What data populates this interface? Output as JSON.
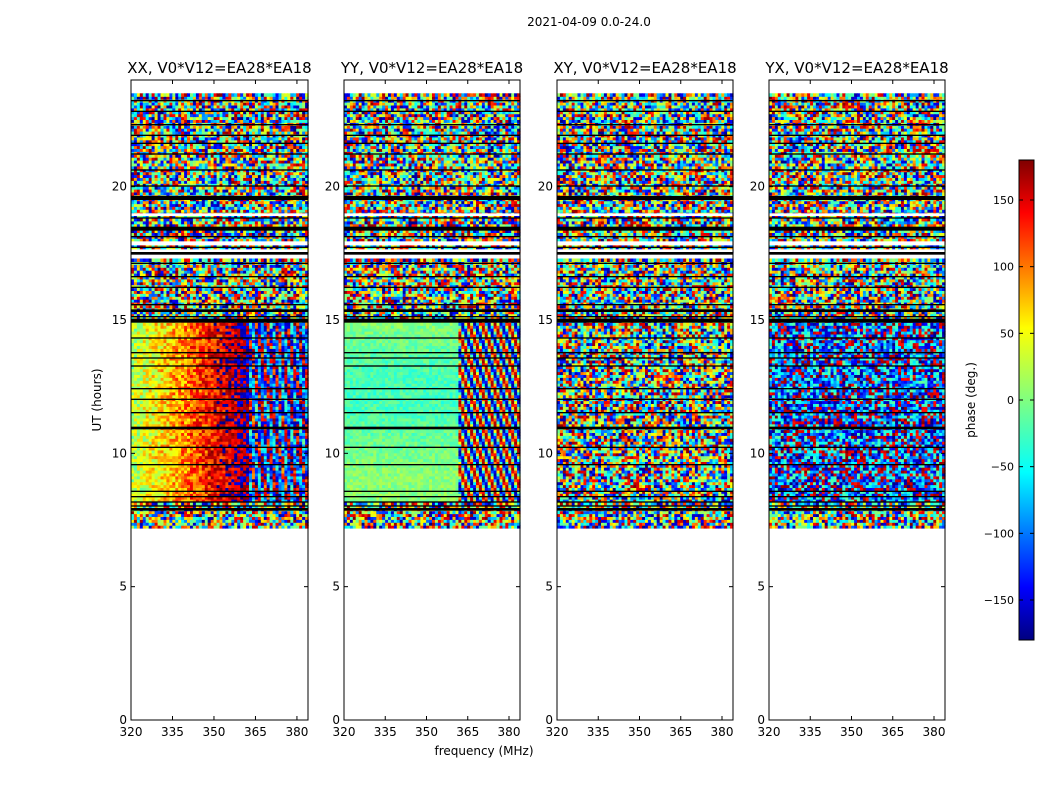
{
  "figure": {
    "suptitle": "2021-04-09 0.0-24.0"
  },
  "chart_data": [
    {
      "type": "heatmap",
      "title": "XX, V0*V12=EA28*EA18",
      "xlabel": "",
      "ylabel": "UT (hours)",
      "xlim": [
        320,
        384
      ],
      "ylim": [
        0,
        24
      ],
      "xticks": [
        320,
        335,
        350,
        365,
        380
      ],
      "yticks": [
        0,
        5,
        10,
        15,
        20
      ],
      "data_time_range": [
        7.2,
        23.5
      ],
      "pattern": "coherent phase gradient: about 0 to 150 deg near 320-335 MHz, ~170 deg near 350 MHz, wrapping to -150 deg around 362 MHz, 8-15 UT; noisy elsewhere"
    },
    {
      "type": "heatmap",
      "title": "YY, V0*V12=EA28*EA18",
      "xlabel": "frequency (MHz)",
      "ylabel": "",
      "xlim": [
        320,
        384
      ],
      "ylim": [
        0,
        24
      ],
      "xticks": [
        320,
        335,
        350,
        365,
        380
      ],
      "yticks": [
        0,
        5,
        10,
        15,
        20
      ],
      "data_time_range": [
        7.2,
        23.5
      ],
      "pattern": "coherent phase near -20 to 20 deg for 320-361 MHz, 8-15 UT; fringes above 361 MHz; noisy elsewhere"
    },
    {
      "type": "heatmap",
      "title": "XY, V0*V12=EA28*EA18",
      "xlabel": "",
      "ylabel": "",
      "xlim": [
        320,
        384
      ],
      "ylim": [
        0,
        24
      ],
      "xticks": [
        320,
        335,
        350,
        365,
        380
      ],
      "yticks": [
        0,
        5,
        10,
        15,
        20
      ],
      "data_time_range": [
        7.2,
        23.5
      ],
      "pattern": "mostly noisy phase"
    },
    {
      "type": "heatmap",
      "title": "YX, V0*V12=EA28*EA18",
      "xlabel": "",
      "ylabel": "",
      "xlim": [
        320,
        384
      ],
      "ylim": [
        0,
        24
      ],
      "xticks": [
        320,
        335,
        350,
        365,
        380
      ],
      "yticks": [
        0,
        5,
        10,
        15,
        20
      ],
      "data_time_range": [
        7.2,
        23.5
      ],
      "pattern": "mostly noisy phase with a bluish tint 9-15 UT"
    }
  ],
  "flagged_rows": [
    {
      "t0": 7.85,
      "t1": 7.95
    },
    {
      "t0": 8.0,
      "t1": 8.05
    },
    {
      "t0": 8.15,
      "t1": 8.2
    },
    {
      "t0": 8.35,
      "t1": 8.4
    },
    {
      "t0": 8.55,
      "t1": 8.6
    },
    {
      "t0": 9.55,
      "t1": 9.6
    },
    {
      "t0": 10.2,
      "t1": 10.25
    },
    {
      "t0": 10.9,
      "t1": 11.0
    },
    {
      "t0": 11.5,
      "t1": 11.55
    },
    {
      "t0": 12.0,
      "t1": 12.05
    },
    {
      "t0": 12.4,
      "t1": 12.45
    },
    {
      "t0": 13.25,
      "t1": 13.3
    },
    {
      "t0": 13.55,
      "t1": 13.6
    },
    {
      "t0": 13.75,
      "t1": 13.8
    },
    {
      "t0": 14.3,
      "t1": 14.35
    },
    {
      "t0": 14.9,
      "t1": 15.05
    },
    {
      "t0": 15.1,
      "t1": 15.15
    },
    {
      "t0": 15.3,
      "t1": 15.4
    },
    {
      "t0": 15.55,
      "t1": 15.6
    },
    {
      "t0": 16.2,
      "t1": 16.25
    },
    {
      "t0": 16.6,
      "t1": 16.65
    },
    {
      "t0": 17.1,
      "t1": 17.15
    },
    {
      "t0": 17.45,
      "t1": 17.55
    },
    {
      "t0": 17.7,
      "t1": 17.75
    },
    {
      "t0": 18.1,
      "t1": 18.15
    },
    {
      "t0": 18.35,
      "t1": 18.5
    },
    {
      "t0": 18.8,
      "t1": 18.85
    },
    {
      "t0": 19.5,
      "t1": 19.65
    },
    {
      "t0": 20.0,
      "t1": 20.05
    },
    {
      "t0": 20.6,
      "t1": 20.65
    },
    {
      "t0": 21.2,
      "t1": 21.25
    },
    {
      "t0": 21.6,
      "t1": 21.65
    },
    {
      "t0": 21.9,
      "t1": 21.95
    },
    {
      "t0": 22.3,
      "t1": 22.35
    },
    {
      "t0": 22.8,
      "t1": 22.85
    },
    {
      "t0": 23.2,
      "t1": 23.25
    }
  ],
  "blank_rows": [
    {
      "t0": 17.55,
      "t1": 17.65
    },
    {
      "t0": 17.8,
      "t1": 17.95
    },
    {
      "t0": 18.9,
      "t1": 19.0
    }
  ],
  "colorbar": {
    "label": "phase (deg.)",
    "vmin": -180,
    "vmax": 180,
    "ticks": [
      -150,
      -100,
      -50,
      0,
      50,
      100,
      150
    ],
    "tick_labels": [
      "−150",
      "−100",
      "−50",
      "0",
      "50",
      "100",
      "150"
    ],
    "colormap": "jet",
    "colors": [
      "#000080",
      "#0000ff",
      "#00ffff",
      "#80ff80",
      "#ffff00",
      "#ff0000",
      "#800000"
    ]
  }
}
